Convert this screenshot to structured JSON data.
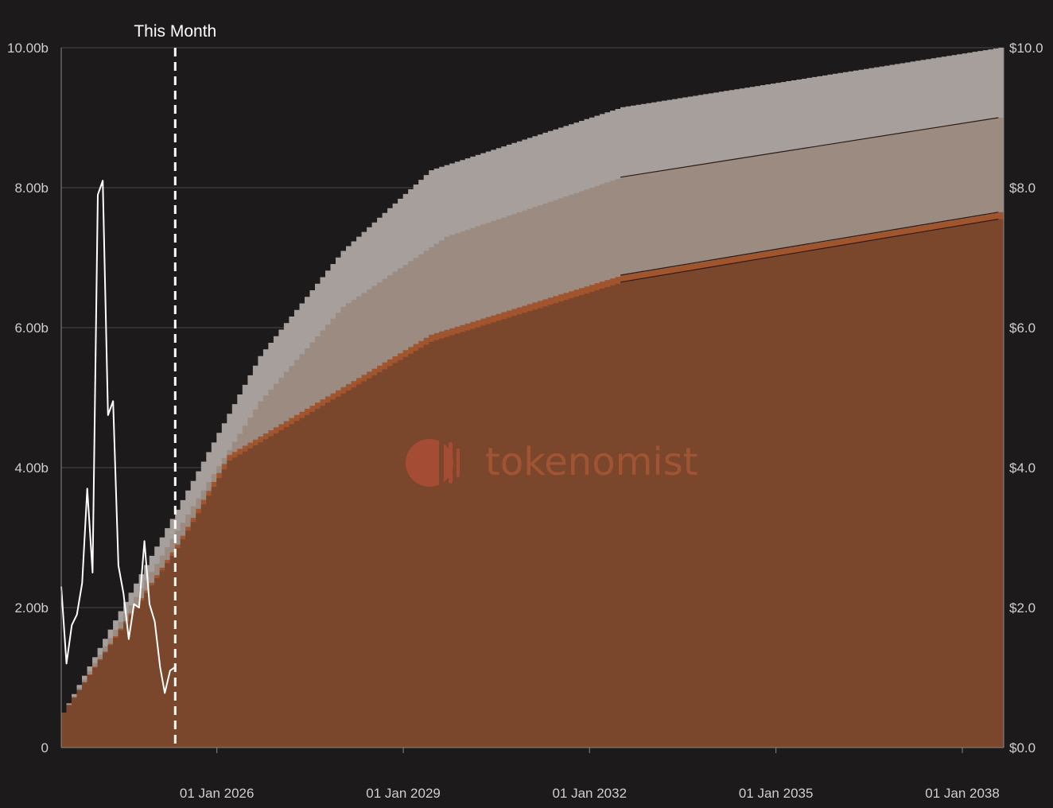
{
  "chart_data": {
    "type": "area",
    "stacked": true,
    "watermark": "tokenomist",
    "marker": {
      "label": "This Month",
      "date": "2025-05-01"
    },
    "x_axis": {
      "range": [
        "2023-07-01",
        "2038-09-01"
      ],
      "ticks": [
        {
          "date": "2026-01-01",
          "label": "01 Jan 2026"
        },
        {
          "date": "2029-01-01",
          "label": "01 Jan 2029"
        },
        {
          "date": "2032-01-01",
          "label": "01 Jan 2032"
        },
        {
          "date": "2035-01-01",
          "label": "01 Jan 2035"
        },
        {
          "date": "2038-01-01",
          "label": "01 Jan 2038"
        }
      ]
    },
    "y_left": {
      "range": [
        0,
        10
      ],
      "unit": "billion tokens",
      "ticks": [
        {
          "v": 0,
          "label": "0"
        },
        {
          "v": 2,
          "label": "2.00b"
        },
        {
          "v": 4,
          "label": "4.00b"
        },
        {
          "v": 6,
          "label": "6.00b"
        },
        {
          "v": 8,
          "label": "8.00b"
        },
        {
          "v": 10,
          "label": "10.00b"
        }
      ]
    },
    "y_right": {
      "range": [
        0,
        10
      ],
      "unit": "USD",
      "ticks": [
        {
          "v": 0,
          "label": "$0.0"
        },
        {
          "v": 2,
          "label": "$2.0"
        },
        {
          "v": 4,
          "label": "$4.0"
        },
        {
          "v": 6,
          "label": "$6.0"
        },
        {
          "v": 8,
          "label": "$8.0"
        },
        {
          "v": 10,
          "label": "$10.0"
        }
      ]
    },
    "grid": true,
    "series": [
      {
        "color": "#7a462c",
        "points": [
          [
            "2023-07-01",
            0.5
          ],
          [
            "2025-05-01",
            2.85
          ],
          [
            "2026-03-01",
            4.1
          ],
          [
            "2029-06-01",
            5.8
          ],
          [
            "2032-07-01",
            6.65
          ],
          [
            "2038-08-01",
            7.55
          ],
          [
            "2038-09-01",
            7.55
          ]
        ]
      },
      {
        "color": "#a0552f",
        "points": [
          [
            "2023-07-01",
            0.5
          ],
          [
            "2025-05-01",
            2.9
          ],
          [
            "2026-03-01",
            4.18
          ],
          [
            "2029-06-01",
            5.9
          ],
          [
            "2032-07-01",
            6.75
          ],
          [
            "2038-08-01",
            7.65
          ],
          [
            "2038-09-01",
            7.65
          ]
        ]
      },
      {
        "color": "#9c8b80",
        "points": [
          [
            "2023-07-01",
            0.5
          ],
          [
            "2025-05-01",
            3.1
          ],
          [
            "2026-09-01",
            4.95
          ],
          [
            "2028-01-01",
            6.3
          ],
          [
            "2029-09-01",
            7.3
          ],
          [
            "2032-07-01",
            8.15
          ],
          [
            "2038-08-01",
            9.0
          ],
          [
            "2038-09-01",
            9.0
          ]
        ]
      },
      {
        "color": "#a79f9b",
        "points": [
          [
            "2023-07-01",
            0.5
          ],
          [
            "2025-05-01",
            3.4
          ],
          [
            "2026-09-01",
            5.6
          ],
          [
            "2028-01-01",
            7.1
          ],
          [
            "2029-06-01",
            8.25
          ],
          [
            "2032-07-01",
            9.15
          ],
          [
            "2038-08-01",
            10.0
          ],
          [
            "2038-09-01",
            10.0
          ]
        ]
      }
    ],
    "price_line": {
      "axis": "right",
      "color": "#ffffff",
      "points": [
        [
          "2023-07-01",
          2.3
        ],
        [
          "2023-08-01",
          1.2
        ],
        [
          "2023-09-01",
          1.75
        ],
        [
          "2023-10-01",
          1.9
        ],
        [
          "2023-11-01",
          2.35
        ],
        [
          "2023-12-01",
          3.7
        ],
        [
          "2024-01-01",
          2.5
        ],
        [
          "2024-02-01",
          7.9
        ],
        [
          "2024-03-01",
          8.1
        ],
        [
          "2024-04-01",
          4.75
        ],
        [
          "2024-05-01",
          4.95
        ],
        [
          "2024-06-01",
          2.6
        ],
        [
          "2024-07-01",
          2.2
        ],
        [
          "2024-08-01",
          1.55
        ],
        [
          "2024-09-01",
          2.05
        ],
        [
          "2024-10-01",
          2.0
        ],
        [
          "2024-11-01",
          2.95
        ],
        [
          "2024-12-01",
          2.05
        ],
        [
          "2025-01-01",
          1.8
        ],
        [
          "2025-02-01",
          1.15
        ],
        [
          "2025-03-01",
          0.78
        ],
        [
          "2025-04-01",
          1.1
        ],
        [
          "2025-05-01",
          1.15
        ]
      ]
    }
  }
}
